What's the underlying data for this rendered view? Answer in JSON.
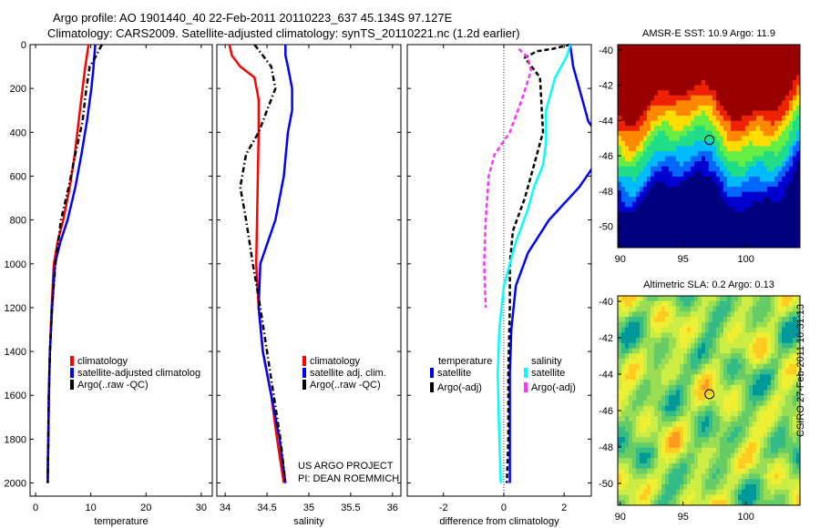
{
  "header": {
    "line1": "Argo profile: AO 1901440_40 22-Feb-2011 20110223_637 45.134S 97.127E",
    "line2": "Climatology: CARS2009. Satellite-adjusted climatology: synTS_20110221.nc (1.2d earlier)"
  },
  "credit": {
    "line1": "US ARGO PROJECT",
    "line2": "PI: DEAN ROEMMICH"
  },
  "stamp": "CSIRO 27-Feb-2011 10:31:13",
  "colors": {
    "red": "#ff0000",
    "blue": "#0000ff",
    "black": "#000000",
    "cyan": "#00ffff",
    "magenta": "#ff33ff"
  },
  "chart_data": [
    {
      "type": "line",
      "xlabel": "temperature",
      "ylabel": "",
      "xlim": [
        -1,
        32
      ],
      "ylim": [
        2060,
        0
      ],
      "x_ticks": [
        0,
        10,
        20,
        30
      ],
      "x_tick_labels": [
        "0",
        "10",
        "20",
        "30"
      ],
      "y_ticks": [
        0,
        200,
        400,
        600,
        800,
        1000,
        1200,
        1400,
        1600,
        1800,
        2000
      ],
      "y_tick_labels": [
        "0",
        "200",
        "400",
        "600",
        "800",
        "1000",
        "1200",
        "1400",
        "1600",
        "1800",
        "2000"
      ],
      "legend": {
        "placement": "lower-right",
        "entries": [
          {
            "label": "climatology",
            "color": "#ff0000"
          },
          {
            "label": "satellite-adjusted climatolog",
            "color": "#0000ff"
          },
          {
            "label": "Argo(..raw -QC)",
            "color": "#000000"
          }
        ]
      },
      "series": [
        {
          "name": "climatology",
          "color": "#ff0000",
          "dash": "",
          "x": [
            9.6,
            9.0,
            8.5,
            7.8,
            7.1,
            6.2,
            5.0,
            4.0,
            3.3,
            2.9,
            2.6,
            2.4,
            2.3,
            2.2,
            2.2
          ],
          "y": [
            0,
            100,
            200,
            350,
            500,
            650,
            800,
            900,
            1000,
            1200,
            1400,
            1600,
            1800,
            1900,
            2000
          ]
        },
        {
          "name": "satellite-adjusted climatology",
          "color": "#0000ff",
          "dash": "",
          "x": [
            10.8,
            10.5,
            10.1,
            9.3,
            8.3,
            7.2,
            5.8,
            4.5,
            3.5,
            3.0,
            2.6,
            2.4,
            2.3,
            2.2
          ],
          "y": [
            0,
            100,
            200,
            350,
            500,
            650,
            800,
            900,
            1000,
            1200,
            1400,
            1600,
            1800,
            2000
          ]
        },
        {
          "name": "Argo(..raw -QC)",
          "color": "#000000",
          "dash": "6,3,1.5,3",
          "x": [
            12.0,
            11.0,
            9.8,
            9.2,
            8.5,
            7.2,
            6.0,
            4.6,
            3.6,
            3.0,
            2.6,
            2.4,
            2.3,
            2.2
          ],
          "y": [
            0,
            50,
            100,
            200,
            350,
            500,
            650,
            800,
            1000,
            1200,
            1400,
            1600,
            1800,
            2000
          ]
        }
      ]
    },
    {
      "type": "line",
      "xlabel": "salinity",
      "xlim": [
        33.9,
        36.1
      ],
      "ylim": [
        2060,
        0
      ],
      "x_ticks": [
        34,
        34.5,
        35,
        35.5,
        36
      ],
      "x_tick_labels": [
        "34",
        "34.5",
        "35",
        "35.5",
        "36"
      ],
      "legend": {
        "placement": "lower-right",
        "entries": [
          {
            "label": "climatology",
            "color": "#ff0000"
          },
          {
            "label": "satellite adj. clim.",
            "color": "#0000ff"
          },
          {
            "label": "Argo(..raw -QC)",
            "color": "#000000"
          }
        ]
      },
      "series": [
        {
          "name": "climatology",
          "color": "#ff0000",
          "dash": "",
          "x": [
            34.05,
            34.08,
            34.18,
            34.35,
            34.4,
            34.4,
            34.39,
            34.38,
            34.37,
            34.4,
            34.45,
            34.55,
            34.62,
            34.7
          ],
          "y": [
            0,
            50,
            100,
            150,
            250,
            400,
            600,
            800,
            1000,
            1200,
            1400,
            1600,
            1800,
            2000
          ]
        },
        {
          "name": "satellite adj. clim.",
          "color": "#0000ff",
          "dash": "",
          "x": [
            34.72,
            34.72,
            34.75,
            34.8,
            34.8,
            34.75,
            34.7,
            34.6,
            34.42,
            34.4,
            34.45,
            34.55,
            34.65,
            34.72
          ],
          "y": [
            0,
            50,
            100,
            200,
            300,
            400,
            600,
            800,
            1000,
            1200,
            1400,
            1600,
            1800,
            2000
          ]
        },
        {
          "name": "Argo(..raw -QC)",
          "color": "#000000",
          "dash": "6,3,1.5,3",
          "x": [
            34.35,
            34.45,
            34.55,
            34.6,
            34.5,
            34.4,
            34.25,
            34.18,
            34.25,
            34.33,
            34.42,
            34.5,
            34.58,
            34.66,
            34.72
          ],
          "y": [
            0,
            50,
            100,
            200,
            300,
            400,
            500,
            650,
            800,
            1000,
            1200,
            1400,
            1600,
            1800,
            2000
          ]
        }
      ]
    },
    {
      "type": "line",
      "xlabel": "difference from climatology",
      "xlim": [
        -3.2,
        2.9
      ],
      "ylim": [
        2060,
        0
      ],
      "x_ticks": [
        -2,
        0,
        2
      ],
      "x_tick_labels": [
        "-2",
        "0",
        "2"
      ],
      "legend": {
        "placement": "lower-center",
        "temperature_title": "temperature",
        "salinity_title": "salinity",
        "entries": [
          {
            "label": "satellite",
            "color": "#0000ff"
          },
          {
            "label": "Argo(-adj)",
            "color": "#000000"
          },
          {
            "label": "satellite",
            "color": "#00ffff"
          },
          {
            "label": "Argo(-adj)",
            "color": "#ff33ff"
          }
        ]
      },
      "series": [
        {
          "name": "temperature satellite",
          "color": "#0000ff",
          "dash": "",
          "x": [
            2.2,
            2.3,
            2.5,
            2.8,
            3.3,
            3.0,
            2.5,
            1.5,
            0.8,
            0.4,
            0.25,
            0.2,
            0.2,
            0.2,
            0.2
          ],
          "y": [
            0,
            100,
            200,
            350,
            450,
            550,
            650,
            800,
            950,
            1100,
            1300,
            1500,
            1700,
            1900,
            2000
          ]
        },
        {
          "name": "temperature Argo(-adj)",
          "color": "#000000",
          "dash": "5,3",
          "x": [
            2.2,
            1.6,
            1.1,
            0.7,
            1.2,
            1.3,
            1.0,
            0.7,
            0.3,
            0.2,
            0.2,
            0.15,
            0.15,
            0.1
          ],
          "y": [
            0,
            20,
            30,
            60,
            150,
            400,
            550,
            700,
            850,
            1000,
            1200,
            1500,
            1800,
            2000
          ]
        },
        {
          "name": "salinity satellite",
          "color": "#00ffff",
          "dash": "",
          "x": [
            2.2,
            2.1,
            1.7,
            1.4,
            1.4,
            1.3,
            1.0,
            0.8,
            0.4,
            0.0,
            -0.15,
            -0.2,
            -0.15,
            -0.1
          ],
          "y": [
            0,
            50,
            150,
            300,
            450,
            550,
            650,
            750,
            900,
            1100,
            1300,
            1500,
            1800,
            2000
          ]
        },
        {
          "name": "salinity Argo(-adj)",
          "color": "#ff33ff",
          "dash": "5,3",
          "x": [
            0.5,
            0.8,
            0.9,
            0.6,
            0.2,
            -0.3,
            -0.5,
            -0.6,
            -0.65,
            -0.6
          ],
          "y": [
            20,
            60,
            120,
            250,
            400,
            500,
            600,
            800,
            1000,
            1200
          ]
        }
      ]
    },
    {
      "type": "heatmap",
      "title": "AMSR-E SST: 10.9 Argo: 11.9",
      "xlim": [
        89.8,
        104.3
      ],
      "ylim": [
        -51.2,
        -39.7
      ],
      "x_ticks": [
        90,
        95,
        100
      ],
      "x_tick_labels": [
        "90",
        "95",
        "100"
      ],
      "y_ticks": [
        -40,
        -42,
        -44,
        -46,
        -48,
        -50
      ],
      "y_tick_labels": [
        "-40",
        "-42",
        "-44",
        "-46",
        "-48",
        "-50"
      ],
      "marker": {
        "lon": 97.1,
        "lat": -45.1
      },
      "colors": [
        "#00007f",
        "#0000d0",
        "#0066ff",
        "#00bbff",
        "#22dd88",
        "#66ee44",
        "#ffdd00",
        "#ff8800",
        "#ee2200",
        "#990000"
      ]
    },
    {
      "type": "heatmap",
      "title": "Altimetric SLA: 0.2 Argo: 0.13",
      "xlim": [
        89.8,
        104.3
      ],
      "ylim": [
        -51.2,
        -39.7
      ],
      "x_ticks": [
        90,
        95,
        100
      ],
      "x_tick_labels": [
        "90",
        "95",
        "100"
      ],
      "y_ticks": [
        -40,
        -42,
        -44,
        -46,
        -48,
        -50
      ],
      "y_tick_labels": [
        "-40",
        "-42",
        "-44",
        "-46",
        "-48",
        "-50"
      ],
      "marker": {
        "lon": 97.1,
        "lat": -45.1
      },
      "colors": [
        "#009999",
        "#33bb88",
        "#66cc66",
        "#99dd55",
        "#ccee44",
        "#eeee33",
        "#ffcc22",
        "#ff9922"
      ]
    }
  ]
}
